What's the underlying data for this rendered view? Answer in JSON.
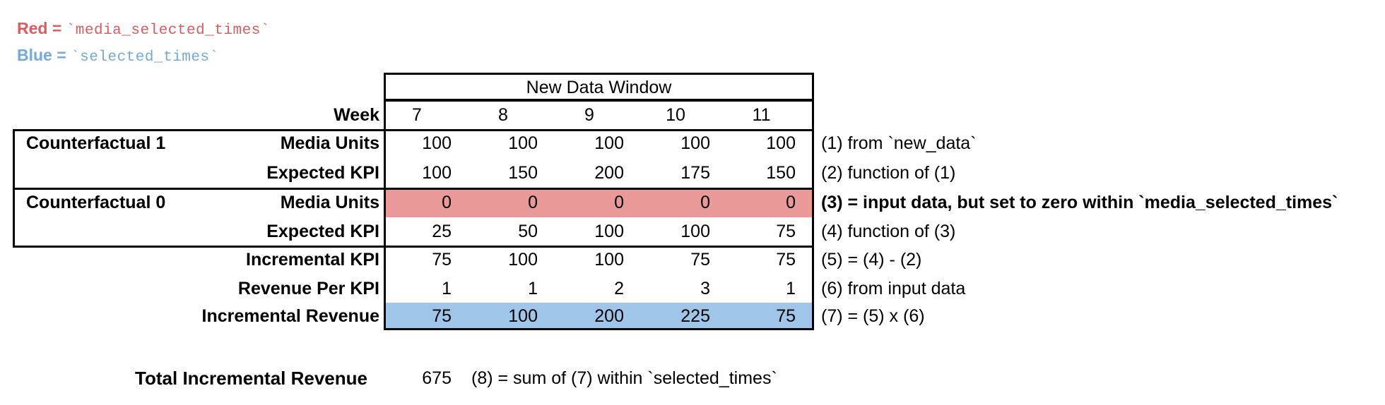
{
  "legend": {
    "red": {
      "prefix": "Red = ",
      "code": "`media_selected_times`",
      "color": "#dc5c5f"
    },
    "blue": {
      "prefix": "Blue = ",
      "code": "`selected_times`",
      "color": "#74aadb"
    }
  },
  "colors": {
    "red_fill": "#ea9999",
    "blue_fill": "#9fc5e8",
    "border": "#000000"
  },
  "table": {
    "header": "New Data Window",
    "week_label": "Week",
    "weeks": [
      "7",
      "8",
      "9",
      "10",
      "11"
    ],
    "rows": [
      {
        "group": "Counterfactual 1",
        "label": "Media Units",
        "values": [
          "100",
          "100",
          "100",
          "100",
          "100"
        ],
        "annotation": "(1) from `new_data`"
      },
      {
        "label": "Expected KPI",
        "values": [
          "100",
          "150",
          "200",
          "175",
          "150"
        ],
        "annotation": "(2) function of (1)"
      },
      {
        "group": "Counterfactual 0",
        "label": "Media Units",
        "values": [
          "0",
          "0",
          "0",
          "0",
          "0"
        ],
        "fill": "red",
        "annotation": "(3) = input data, but set to zero within `media_selected_times`",
        "annotation_bold": true
      },
      {
        "label": "Expected KPI",
        "values": [
          "25",
          "50",
          "100",
          "100",
          "75"
        ],
        "annotation": "(4) function of (3)"
      },
      {
        "label": "Incremental KPI",
        "values": [
          "75",
          "100",
          "100",
          "75",
          "75"
        ],
        "annotation": "(5) = (4) - (2)"
      },
      {
        "label": "Revenue Per KPI",
        "values": [
          "1",
          "1",
          "2",
          "3",
          "1"
        ],
        "annotation": "(6) from input data"
      },
      {
        "label": "Incremental Revenue",
        "values": [
          "75",
          "100",
          "200",
          "225",
          "75"
        ],
        "fill": "blue",
        "annotation": "(7) = (5) x (6)"
      }
    ],
    "total": {
      "label": "Total Incremental Revenue",
      "value": "675",
      "annotation": "(8) = sum of (7) within `selected_times`"
    }
  }
}
